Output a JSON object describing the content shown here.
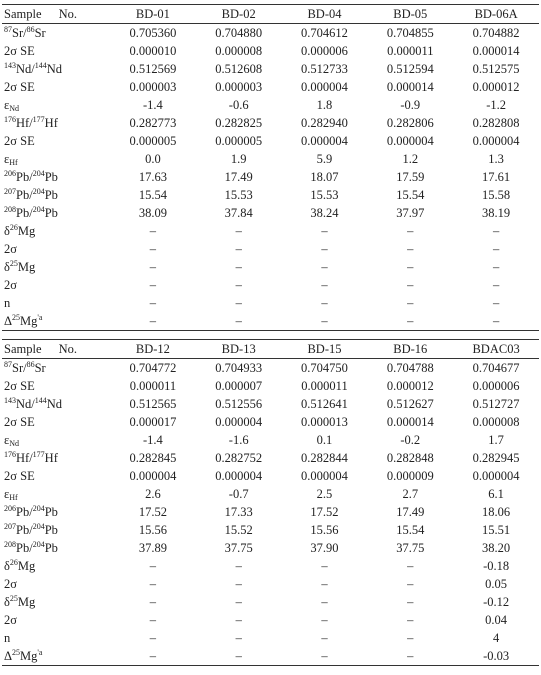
{
  "tables": [
    {
      "header": [
        "Sample No.",
        "BD-01",
        "BD-02",
        "BD-04",
        "BD-05",
        "BD-06A"
      ],
      "rows": [
        [
          [
            {
              "sup": "87"
            },
            "Sr/",
            {
              "sup": "86"
            },
            "Sr"
          ],
          "0.705360",
          "0.704880",
          "0.704612",
          "0.704855",
          "0.704882"
        ],
        [
          [
            "2σ SE"
          ],
          "0.000010",
          "0.000008",
          "0.000006",
          "0.000011",
          "0.000014"
        ],
        [
          [
            {
              "sup": "143"
            },
            "Nd/",
            {
              "sup": "144"
            },
            "Nd"
          ],
          "0.512569",
          "0.512608",
          "0.512733",
          "0.512594",
          "0.512575"
        ],
        [
          [
            "2σ SE"
          ],
          "0.000003",
          "0.000003",
          "0.000004",
          "0.000014",
          "0.000012"
        ],
        [
          [
            "ε",
            {
              "sub": "Nd"
            }
          ],
          "-1.4",
          "-0.6",
          "1.8",
          "-0.9",
          "-1.2"
        ],
        [
          [
            {
              "sup": "176"
            },
            "Hf/",
            {
              "sup": "177"
            },
            "Hf"
          ],
          "0.282773",
          "0.282825",
          "0.282940",
          "0.282806",
          "0.282808"
        ],
        [
          [
            "2σ SE"
          ],
          "0.000005",
          "0.000005",
          "0.000004",
          "0.000004",
          "0.000004"
        ],
        [
          [
            "ε",
            {
              "sub": "Hf"
            }
          ],
          "0.0",
          "1.9",
          "5.9",
          "1.2",
          "1.3"
        ],
        [
          [
            {
              "sup": "206"
            },
            "Pb/",
            {
              "sup": "204"
            },
            "Pb"
          ],
          "17.63",
          "17.49",
          "18.07",
          "17.59",
          "17.61"
        ],
        [
          [
            {
              "sup": "207"
            },
            "Pb/",
            {
              "sup": "204"
            },
            "Pb"
          ],
          "15.54",
          "15.53",
          "15.53",
          "15.54",
          "15.58"
        ],
        [
          [
            {
              "sup": "208"
            },
            "Pb/",
            {
              "sup": "204"
            },
            "Pb"
          ],
          "38.09",
          "37.84",
          "38.24",
          "37.97",
          "38.19"
        ],
        [
          [
            "δ",
            {
              "sup": "26"
            },
            "Mg"
          ],
          "–",
          "–",
          "–",
          "–",
          "–"
        ],
        [
          [
            "2σ"
          ],
          "–",
          "–",
          "–",
          "–",
          "–"
        ],
        [
          [
            "δ",
            {
              "sup": "25"
            },
            "Mg"
          ],
          "–",
          "–",
          "–",
          "–",
          "–"
        ],
        [
          [
            "2σ"
          ],
          "–",
          "–",
          "–",
          "–",
          "–"
        ],
        [
          [
            "n"
          ],
          "–",
          "–",
          "–",
          "–",
          "–"
        ],
        [
          [
            "Δ",
            {
              "sup": "25"
            },
            "Mg",
            {
              "sup": "'a"
            }
          ],
          "–",
          "–",
          "–",
          "–",
          "–"
        ]
      ]
    },
    {
      "header": [
        "Sample No.",
        "BD-12",
        "BD-13",
        "BD-15",
        "BD-16",
        "BDAC03"
      ],
      "rows": [
        [
          [
            {
              "sup": "87"
            },
            "Sr/",
            {
              "sup": "86"
            },
            "Sr"
          ],
          "0.704772",
          "0.704933",
          "0.704750",
          "0.704788",
          "0.704677"
        ],
        [
          [
            "2σ SE"
          ],
          "0.000011",
          "0.000007",
          "0.000011",
          "0.000012",
          "0.000006"
        ],
        [
          [
            {
              "sup": "143"
            },
            "Nd/",
            {
              "sup": "144"
            },
            "Nd"
          ],
          "0.512565",
          "0.512556",
          "0.512641",
          "0.512627",
          "0.512727"
        ],
        [
          [
            "2σ SE"
          ],
          "0.000017",
          "0.000004",
          "0.000013",
          "0.000014",
          "0.000008"
        ],
        [
          [
            "ε",
            {
              "sub": "Nd"
            }
          ],
          "-1.4",
          "-1.6",
          "0.1",
          "-0.2",
          "1.7"
        ],
        [
          [
            {
              "sup": "176"
            },
            "Hf/",
            {
              "sup": "177"
            },
            "Hf"
          ],
          "0.282845",
          "0.282752",
          "0.282844",
          "0.282848",
          "0.282945"
        ],
        [
          [
            "2σ SE"
          ],
          "0.000004",
          "0.000004",
          "0.000004",
          "0.000009",
          "0.000004"
        ],
        [
          [
            "ε",
            {
              "sub": "Hf"
            }
          ],
          "2.6",
          "-0.7",
          "2.5",
          "2.7",
          "6.1"
        ],
        [
          [
            {
              "sup": "206"
            },
            "Pb/",
            {
              "sup": "204"
            },
            "Pb"
          ],
          "17.52",
          "17.33",
          "17.52",
          "17.49",
          "18.06"
        ],
        [
          [
            {
              "sup": "207"
            },
            "Pb/",
            {
              "sup": "204"
            },
            "Pb"
          ],
          "15.56",
          "15.52",
          "15.56",
          "15.54",
          "15.51"
        ],
        [
          [
            {
              "sup": "208"
            },
            "Pb/",
            {
              "sup": "204"
            },
            "Pb"
          ],
          "37.89",
          "37.75",
          "37.90",
          "37.75",
          "38.20"
        ],
        [
          [
            "δ",
            {
              "sup": "26"
            },
            "Mg"
          ],
          "–",
          "–",
          "–",
          "–",
          "-0.18"
        ],
        [
          [
            "2σ"
          ],
          "–",
          "–",
          "–",
          "–",
          "0.05"
        ],
        [
          [
            "δ",
            {
              "sup": "25"
            },
            "Mg"
          ],
          "–",
          "–",
          "–",
          "–",
          "-0.12"
        ],
        [
          [
            "2σ"
          ],
          "–",
          "–",
          "–",
          "–",
          "0.04"
        ],
        [
          [
            "n"
          ],
          "–",
          "–",
          "–",
          "–",
          "4"
        ],
        [
          [
            "Δ",
            {
              "sup": "25"
            },
            "Mg",
            {
              "sup": "'a"
            }
          ],
          "–",
          "–",
          "–",
          "–",
          "-0.03"
        ]
      ]
    }
  ]
}
